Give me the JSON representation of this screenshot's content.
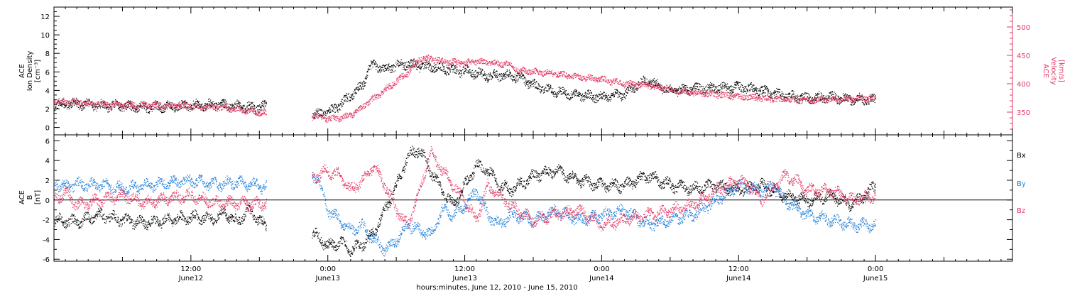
{
  "colors": {
    "black": "#000000",
    "blue": "#1f7fd8",
    "pink": "#e23864"
  },
  "x_axis": {
    "label": "hours:minutes, June 12, 2010 - June 15, 2010",
    "range_hours": [
      0,
      84
    ],
    "ticks": [
      {
        "h": 12,
        "time": "12:00",
        "day": "June12"
      },
      {
        "h": 24,
        "time": "0:00",
        "day": "June13"
      },
      {
        "h": 36,
        "time": "12:00",
        "day": "June13"
      },
      {
        "h": 48,
        "time": "0:00",
        "day": "June14"
      },
      {
        "h": 60,
        "time": "12:00",
        "day": "June14"
      },
      {
        "h": 72,
        "time": "0:00",
        "day": "June15"
      }
    ]
  },
  "chart_data": [
    {
      "type": "scatter",
      "panel": "top",
      "ylabel_left": [
        "ACE",
        "Ion Density",
        "[cm⁻³]"
      ],
      "ylabel_right": [
        "ACE",
        "Velocity",
        "[km/s]"
      ],
      "ylim_left": [
        -0.8,
        13
      ],
      "yticks_left": [
        0,
        2,
        4,
        6,
        8,
        10,
        12
      ],
      "ylim_right": [
        310,
        535
      ],
      "yticks_right": [
        350,
        400,
        450,
        500
      ],
      "data_gap_hours": [
        [
          18.6,
          22.6
        ]
      ],
      "series": [
        {
          "axis": "left",
          "color": "black",
          "points": [
            [
              0,
              2.5
            ],
            [
              2,
              2.6
            ],
            [
              4,
              2.4
            ],
            [
              6,
              2.3
            ],
            [
              8,
              2.2
            ],
            [
              10,
              2.3
            ],
            [
              12,
              2.4
            ],
            [
              14,
              2.5
            ],
            [
              16,
              2.3
            ],
            [
              18,
              2.2
            ],
            [
              18.5,
              2.3
            ],
            [
              22.8,
              1.4
            ],
            [
              24,
              1.7
            ],
            [
              25,
              2.4
            ],
            [
              26,
              3.5
            ],
            [
              27,
              4.5
            ],
            [
              27.6,
              6.5
            ],
            [
              28,
              6.8
            ],
            [
              29,
              6.3
            ],
            [
              30,
              6.7
            ],
            [
              31,
              6.9
            ],
            [
              32,
              6.7
            ],
            [
              33,
              6.6
            ],
            [
              34,
              6.4
            ],
            [
              35,
              6.2
            ],
            [
              36,
              6.1
            ],
            [
              37,
              5.9
            ],
            [
              38,
              5.6
            ],
            [
              40,
              5.7
            ],
            [
              41,
              5.3
            ],
            [
              42,
              4.6
            ],
            [
              43,
              4.2
            ],
            [
              44,
              3.9
            ],
            [
              46,
              3.5
            ],
            [
              48,
              3.3
            ],
            [
              50,
              3.6
            ],
            [
              51,
              4.6
            ],
            [
              52,
              5.1
            ],
            [
              53,
              4.5
            ],
            [
              54,
              4.0
            ],
            [
              56,
              4.2
            ],
            [
              58,
              4.3
            ],
            [
              60,
              4.4
            ],
            [
              62,
              4.0
            ],
            [
              64,
              3.5
            ],
            [
              66,
              3.2
            ],
            [
              68,
              3.3
            ],
            [
              70,
              3.1
            ],
            [
              72,
              3.0
            ]
          ]
        },
        {
          "axis": "right",
          "color": "pink",
          "points": [
            [
              0,
              370
            ],
            [
              2,
              368
            ],
            [
              4,
              365
            ],
            [
              6,
              363
            ],
            [
              8,
              363
            ],
            [
              10,
              362
            ],
            [
              12,
              361
            ],
            [
              14,
              359
            ],
            [
              16,
              356
            ],
            [
              18,
              350
            ],
            [
              18.5,
              349
            ],
            [
              22.8,
              343
            ],
            [
              24,
              339
            ],
            [
              25,
              340
            ],
            [
              26,
              345
            ],
            [
              27,
              360
            ],
            [
              28,
              375
            ],
            [
              29,
              390
            ],
            [
              30,
              405
            ],
            [
              31,
              420
            ],
            [
              32,
              445
            ],
            [
              33,
              445
            ],
            [
              34,
              440
            ],
            [
              36,
              437
            ],
            [
              37,
              440
            ],
            [
              38,
              438
            ],
            [
              40,
              435
            ],
            [
              40.5,
              425
            ],
            [
              42,
              422
            ],
            [
              44,
              418
            ],
            [
              46,
              412
            ],
            [
              48,
              408
            ],
            [
              50,
              400
            ],
            [
              52,
              398
            ],
            [
              54,
              390
            ],
            [
              56,
              385
            ],
            [
              58,
              382
            ],
            [
              60,
              378
            ],
            [
              62,
              375
            ],
            [
              64,
              372
            ],
            [
              66,
              372
            ],
            [
              68,
              373
            ],
            [
              70,
              374
            ],
            [
              72,
              375
            ]
          ]
        }
      ]
    },
    {
      "type": "scatter",
      "panel": "bottom",
      "ylabel_left": [
        "ACE",
        "B",
        "[nT]"
      ],
      "ylim": [
        -6.2,
        6.6
      ],
      "yticks": [
        -6,
        -4,
        -2,
        0,
        2,
        4,
        6
      ],
      "zero_line": true,
      "legend": [
        "Bx",
        "By",
        "Bz"
      ],
      "legend_position": "right",
      "data_gap_hours": [
        [
          18.6,
          22.6
        ]
      ],
      "series": [
        {
          "name": "Bx",
          "color": "black",
          "points": [
            [
              0,
              -2.0
            ],
            [
              2,
              -2.2
            ],
            [
              4,
              -1.5
            ],
            [
              6,
              -2.0
            ],
            [
              8,
              -2.3
            ],
            [
              10,
              -2.0
            ],
            [
              12,
              -1.7
            ],
            [
              14,
              -1.8
            ],
            [
              15,
              -1.2
            ],
            [
              16,
              -2.3
            ],
            [
              17,
              -1.0
            ],
            [
              18.5,
              -2.6
            ],
            [
              23,
              -3.5
            ],
            [
              24,
              -4.7
            ],
            [
              25,
              -4.2
            ],
            [
              26,
              -5.0
            ],
            [
              27,
              -4.5
            ],
            [
              28,
              -3.2
            ],
            [
              29,
              -1.0
            ],
            [
              30,
              1.5
            ],
            [
              31,
              4.5
            ],
            [
              32,
              5.2
            ],
            [
              33,
              3.0
            ],
            [
              34,
              1.0
            ],
            [
              35,
              -0.5
            ],
            [
              36,
              1.5
            ],
            [
              37,
              3.5
            ],
            [
              38,
              3.0
            ],
            [
              39,
              1.5
            ],
            [
              40,
              1.0
            ],
            [
              42,
              2.5
            ],
            [
              44,
              3.0
            ],
            [
              46,
              2.0
            ],
            [
              48,
              1.5
            ],
            [
              50,
              1.5
            ],
            [
              52,
              2.5
            ],
            [
              53,
              2.0
            ],
            [
              54,
              1.5
            ],
            [
              56,
              1.2
            ],
            [
              58,
              1.5
            ],
            [
              60,
              1.0
            ],
            [
              62,
              1.5
            ],
            [
              64,
              0.5
            ],
            [
              66,
              0.0
            ],
            [
              68,
              0.5
            ],
            [
              70,
              -0.5
            ],
            [
              72,
              1.5
            ]
          ]
        },
        {
          "name": "By",
          "color": "blue",
          "points": [
            [
              0,
              1.8
            ],
            [
              1,
              1.4
            ],
            [
              2,
              1.6
            ],
            [
              4,
              1.6
            ],
            [
              6,
              1.2
            ],
            [
              8,
              1.5
            ],
            [
              10,
              1.8
            ],
            [
              12,
              2.0
            ],
            [
              14,
              1.6
            ],
            [
              16,
              1.8
            ],
            [
              18,
              1.5
            ],
            [
              18.5,
              1.3
            ],
            [
              23,
              2.5
            ],
            [
              24,
              -1.0
            ],
            [
              25,
              -2.0
            ],
            [
              26,
              -3.0
            ],
            [
              27,
              -2.5
            ],
            [
              28,
              -4.0
            ],
            [
              29,
              -5.0
            ],
            [
              30,
              -4.0
            ],
            [
              31,
              -2.5
            ],
            [
              32,
              -3.0
            ],
            [
              33,
              -3.5
            ],
            [
              34,
              -1.0
            ],
            [
              35,
              -1.5
            ],
            [
              36,
              -0.5
            ],
            [
              37,
              1.0
            ],
            [
              38,
              -1.5
            ],
            [
              39,
              -2.5
            ],
            [
              40,
              -1.5
            ],
            [
              42,
              -2.0
            ],
            [
              44,
              -1.0
            ],
            [
              46,
              -2.0
            ],
            [
              48,
              -1.5
            ],
            [
              50,
              -1.0
            ],
            [
              52,
              -2.5
            ],
            [
              54,
              -2.0
            ],
            [
              56,
              -1.5
            ],
            [
              58,
              0.0
            ],
            [
              60,
              1.5
            ],
            [
              62,
              1.0
            ],
            [
              63,
              1.5
            ],
            [
              64,
              0.0
            ],
            [
              66,
              -1.5
            ],
            [
              68,
              -2.0
            ],
            [
              70,
              -2.5
            ],
            [
              72,
              -2.5
            ]
          ]
        },
        {
          "name": "Bz",
          "color": "pink",
          "points": [
            [
              0,
              0.0
            ],
            [
              1,
              0.8
            ],
            [
              2,
              -0.5
            ],
            [
              4,
              0.0
            ],
            [
              6,
              0.5
            ],
            [
              8,
              -0.3
            ],
            [
              10,
              0.2
            ],
            [
              12,
              0.5
            ],
            [
              14,
              -0.2
            ],
            [
              16,
              -0.3
            ],
            [
              18,
              -0.4
            ],
            [
              18.5,
              -0.3
            ],
            [
              23,
              2.5
            ],
            [
              24,
              3.0
            ],
            [
              25,
              2.5
            ],
            [
              26,
              1.0
            ],
            [
              27,
              2.0
            ],
            [
              28,
              3.5
            ],
            [
              29,
              1.5
            ],
            [
              30,
              -1.0
            ],
            [
              31,
              -2.5
            ],
            [
              32,
              1.0
            ],
            [
              33,
              5.0
            ],
            [
              34,
              3.0
            ],
            [
              35,
              1.5
            ],
            [
              36,
              0.0
            ],
            [
              37,
              -2.0
            ],
            [
              38,
              1.5
            ],
            [
              39,
              0.5
            ],
            [
              40,
              -0.5
            ],
            [
              42,
              -2.0
            ],
            [
              44,
              -1.5
            ],
            [
              46,
              -1.0
            ],
            [
              48,
              -2.5
            ],
            [
              50,
              -2.0
            ],
            [
              52,
              -1.5
            ],
            [
              54,
              -1.0
            ],
            [
              56,
              -0.5
            ],
            [
              58,
              1.0
            ],
            [
              59,
              1.5
            ],
            [
              60,
              2.0
            ],
            [
              61,
              1.5
            ],
            [
              62,
              0.0
            ],
            [
              64,
              2.5
            ],
            [
              65,
              2.0
            ],
            [
              66,
              1.0
            ],
            [
              68,
              1.0
            ],
            [
              70,
              0.0
            ],
            [
              72,
              0.5
            ]
          ]
        }
      ]
    }
  ]
}
